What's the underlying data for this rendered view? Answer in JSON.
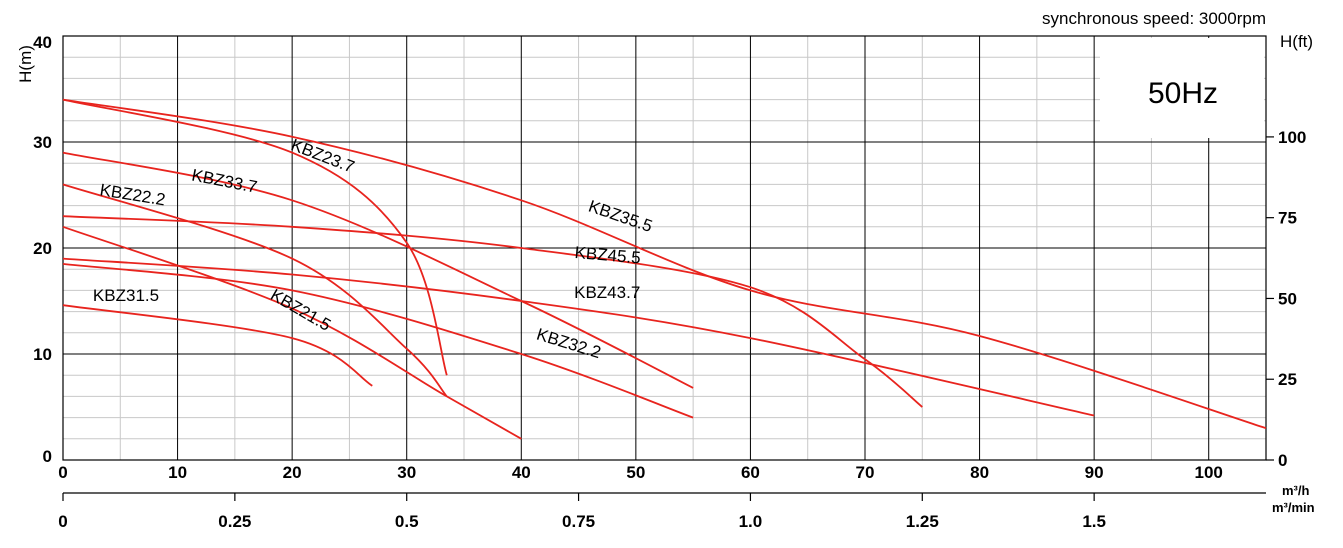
{
  "header": {
    "speed_label": "synchronous speed: 3000rpm",
    "left_axis_title": "H(m)",
    "right_axis_title": "H(ft)",
    "freq_badge": "50Hz",
    "flow_unit_top": "m³/h",
    "flow_unit_bottom": "m³/min"
  },
  "colors": {
    "curve": "#e8241e",
    "badge_text": "#1a6fc9",
    "grid_major": "#000000",
    "grid_minor": "#c8c8c8"
  },
  "chart_data": {
    "type": "line",
    "xlabel": "m³/h",
    "ylabel": "H(m)",
    "xlim": [
      0,
      105
    ],
    "ylim": [
      0,
      40
    ],
    "x_ticks": [
      "0",
      "10",
      "20",
      "30",
      "40",
      "50",
      "60",
      "70",
      "80",
      "90",
      "100"
    ],
    "y_ticks": [
      "0",
      "10",
      "20",
      "30",
      "40"
    ],
    "secondary_x_ticks": [
      "0",
      "0.25",
      "0.5",
      "0.75",
      "1.0",
      "1.25",
      "1.5"
    ],
    "secondary_x_values": [
      0,
      15,
      30,
      45,
      60,
      75,
      90
    ],
    "secondary_y_ticks": [
      "0",
      "25",
      "50",
      "75",
      "100"
    ],
    "secondary_y_values_m": [
      0,
      7.62,
      15.24,
      22.86,
      30.48
    ],
    "grid": true,
    "series": [
      {
        "name": "KBZ35.5",
        "points": [
          [
            0,
            34
          ],
          [
            20,
            30.5
          ],
          [
            40,
            24.5
          ],
          [
            60,
            16
          ],
          [
            80,
            11.7
          ],
          [
            105,
            3
          ]
        ]
      },
      {
        "name": "KBZ45.5",
        "points": [
          [
            0,
            23
          ],
          [
            20,
            22
          ],
          [
            40,
            20
          ],
          [
            60,
            16.3
          ],
          [
            70,
            9.5
          ],
          [
            75,
            5
          ]
        ]
      },
      {
        "name": "KBZ43.7",
        "points": [
          [
            0,
            19
          ],
          [
            20,
            17.5
          ],
          [
            40,
            15
          ],
          [
            60,
            11.5
          ],
          [
            90,
            4.2
          ]
        ]
      },
      {
        "name": "KBZ23.7",
        "points": [
          [
            0,
            34
          ],
          [
            20,
            29
          ],
          [
            30,
            20.5
          ],
          [
            33.5,
            8
          ]
        ]
      },
      {
        "name": "KBZ33.7",
        "points": [
          [
            0,
            29
          ],
          [
            20,
            24.5
          ],
          [
            40,
            15
          ],
          [
            55,
            6.8
          ]
        ]
      },
      {
        "name": "KBZ22.2",
        "points": [
          [
            0,
            26
          ],
          [
            20,
            19
          ],
          [
            30,
            10.5
          ],
          [
            33.5,
            6
          ]
        ]
      },
      {
        "name": "KBZ21.5",
        "points": [
          [
            0,
            22
          ],
          [
            20,
            14.3
          ],
          [
            33.5,
            6
          ],
          [
            40,
            2
          ]
        ]
      },
      {
        "name": "KBZ32.2",
        "points": [
          [
            0,
            18.5
          ],
          [
            20,
            16
          ],
          [
            40,
            10
          ],
          [
            55,
            4
          ]
        ]
      },
      {
        "name": "KBZ31.5",
        "points": [
          [
            0,
            14.6
          ],
          [
            20,
            11.5
          ],
          [
            27,
            7
          ]
        ]
      }
    ],
    "labels": [
      {
        "text": "KBZ23.7",
        "x": 22.5,
        "y": 28.2,
        "rot": 21
      },
      {
        "text": "KBZ33.7",
        "x": 14,
        "y": 25.8,
        "rot": 11
      },
      {
        "text": "KBZ22.2",
        "x": 6,
        "y": 24.5,
        "rot": 9
      },
      {
        "text": "KBZ35.5",
        "x": 48.5,
        "y": 22.5,
        "rot": 19
      },
      {
        "text": "KBZ45.5",
        "x": 47.5,
        "y": 18.8,
        "rot": 5
      },
      {
        "text": "KBZ43.7",
        "x": 47.5,
        "y": 15.3,
        "rot": 0
      },
      {
        "text": "KBZ31.5",
        "x": 5.5,
        "y": 15,
        "rot": 0
      },
      {
        "text": "KBZ21.5",
        "x": 20.5,
        "y": 13.7,
        "rot": 30
      },
      {
        "text": "KBZ32.2",
        "x": 44,
        "y": 10.5,
        "rot": 17
      }
    ]
  }
}
